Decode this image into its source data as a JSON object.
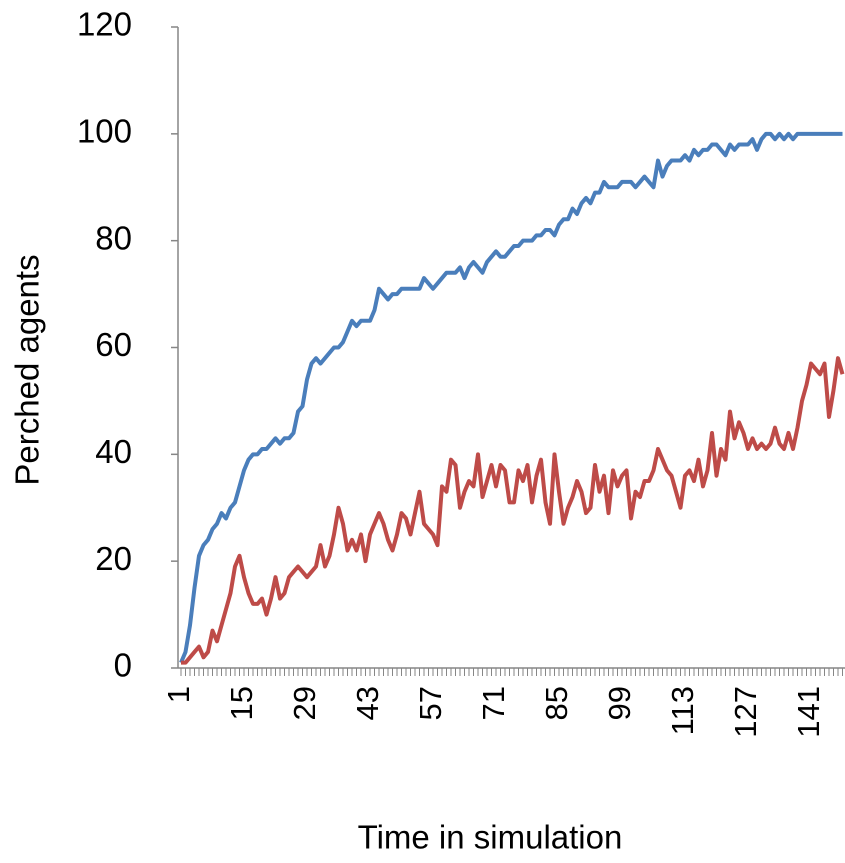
{
  "chart_data": {
    "type": "line",
    "x_label": "Time in simulation",
    "y_label": "Perched agents",
    "categories": [
      "1",
      null,
      null,
      null,
      null,
      null,
      null,
      null,
      null,
      null,
      null,
      null,
      null,
      null,
      "15",
      null,
      null,
      null,
      null,
      null,
      null,
      null,
      null,
      null,
      null,
      null,
      null,
      null,
      "29",
      null,
      null,
      null,
      null,
      null,
      null,
      null,
      null,
      null,
      null,
      null,
      null,
      null,
      "43",
      null,
      null,
      null,
      null,
      null,
      null,
      null,
      null,
      null,
      null,
      null,
      null,
      null,
      "57",
      null,
      null,
      null,
      null,
      null,
      null,
      null,
      null,
      null,
      null,
      null,
      null,
      null,
      "71",
      null,
      null,
      null,
      null,
      null,
      null,
      null,
      null,
      null,
      null,
      null,
      null,
      null,
      "85",
      null,
      null,
      null,
      null,
      null,
      null,
      null,
      null,
      null,
      null,
      null,
      null,
      null,
      "99",
      null,
      null,
      null,
      null,
      null,
      null,
      null,
      null,
      null,
      null,
      null,
      null,
      null,
      "113",
      null,
      null,
      null,
      null,
      null,
      null,
      null,
      null,
      null,
      null,
      null,
      null,
      null,
      "127",
      null,
      null,
      null,
      null,
      null,
      null,
      null,
      null,
      null,
      null,
      null,
      null,
      null,
      "141",
      null,
      null,
      null,
      null,
      null,
      null,
      null
    ],
    "series": [
      {
        "color": "#4a7ebb",
        "values": [
          1,
          3,
          8,
          15,
          21,
          23,
          24,
          26,
          27,
          29,
          28,
          30,
          31,
          34,
          37,
          39,
          40,
          40,
          41,
          41,
          42,
          43,
          42,
          43,
          43,
          44,
          48,
          49,
          54,
          57,
          58,
          57,
          58,
          59,
          60,
          60,
          61,
          63,
          65,
          64,
          65,
          65,
          65,
          67,
          71,
          70,
          69,
          70,
          70,
          71,
          71,
          71,
          71,
          71,
          73,
          72,
          71,
          72,
          73,
          74,
          74,
          74,
          75,
          73,
          75,
          76,
          75,
          74,
          76,
          77,
          78,
          77,
          77,
          78,
          79,
          79,
          80,
          80,
          80,
          81,
          81,
          82,
          82,
          81,
          83,
          84,
          84,
          86,
          85,
          87,
          88,
          87,
          89,
          89,
          91,
          90,
          90,
          90,
          91,
          91,
          91,
          90,
          91,
          92,
          91,
          90,
          95,
          92,
          94,
          95,
          95,
          95,
          96,
          95,
          97,
          96,
          97,
          97,
          98,
          98,
          97,
          96,
          98,
          97,
          98,
          98,
          98,
          99,
          97,
          99,
          100,
          100,
          99,
          100,
          99,
          100,
          99,
          100,
          100,
          100,
          100,
          100,
          100,
          100,
          100,
          100,
          100,
          100
        ]
      },
      {
        "color": "#be4b48",
        "values": [
          1,
          1,
          2,
          3,
          4,
          2,
          3,
          7,
          5,
          8,
          11,
          14,
          19,
          21,
          17,
          14,
          12,
          12,
          13,
          10,
          13,
          17,
          13,
          14,
          17,
          18,
          19,
          18,
          17,
          18,
          19,
          23,
          19,
          21,
          25,
          30,
          27,
          22,
          24,
          22,
          25,
          20,
          25,
          27,
          29,
          27,
          24,
          22,
          25,
          29,
          28,
          25,
          29,
          33,
          27,
          26,
          25,
          23,
          34,
          33,
          39,
          38,
          30,
          33,
          35,
          34,
          40,
          32,
          35,
          38,
          34,
          38,
          37,
          31,
          31,
          37,
          35,
          38,
          31,
          36,
          39,
          31,
          27,
          40,
          33,
          27,
          30,
          32,
          35,
          33,
          29,
          30,
          38,
          33,
          36,
          29,
          37,
          34,
          36,
          37,
          28,
          33,
          32,
          35,
          35,
          37,
          41,
          39,
          37,
          36,
          33,
          30,
          36,
          37,
          35,
          39,
          34,
          37,
          44,
          36,
          41,
          39,
          48,
          43,
          46,
          44,
          41,
          43,
          41,
          42,
          41,
          42,
          45,
          42,
          41,
          44,
          41,
          45,
          50,
          53,
          57,
          56,
          55,
          57,
          47,
          52,
          58,
          55
        ]
      }
    ],
    "ylim": [
      0,
      120
    ],
    "yticks": [
      0,
      20,
      40,
      60,
      80,
      100,
      120
    ]
  }
}
